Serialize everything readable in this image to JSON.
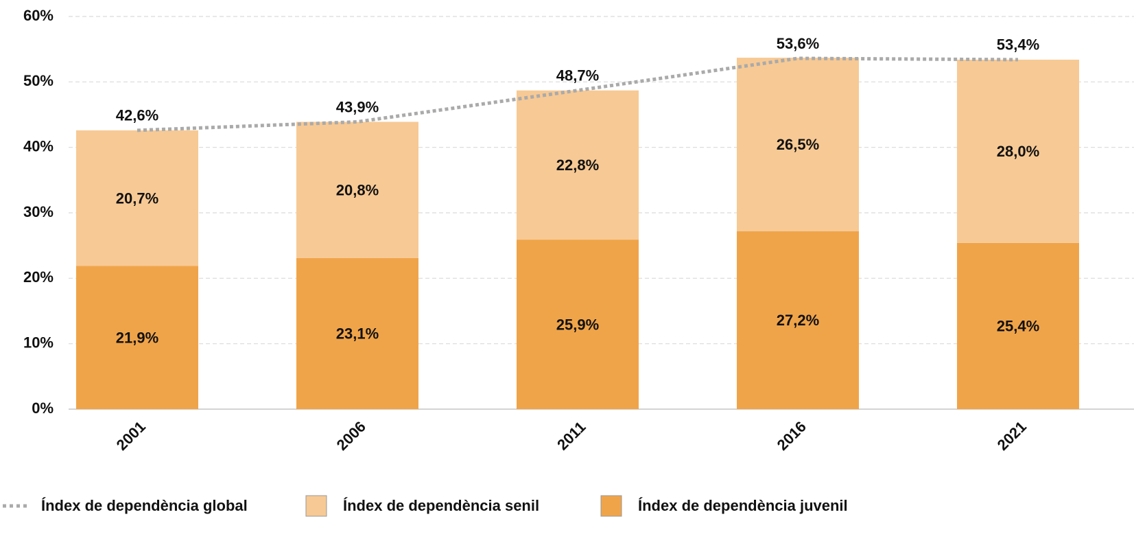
{
  "chart_data": {
    "type": "bar",
    "stacked": true,
    "categories": [
      "2001",
      "2006",
      "2011",
      "2016",
      "2021"
    ],
    "series": [
      {
        "name": "Índex de dependència global",
        "type": "line",
        "color": "#aaaaaa",
        "values": [
          42.6,
          43.9,
          48.7,
          53.6,
          53.4
        ],
        "value_labels": [
          "42,6%",
          "43,9%",
          "48,7%",
          "53,6%",
          "53,4%"
        ]
      },
      {
        "name": "Índex de dependència senil",
        "type": "bar",
        "stack_order": 1,
        "color": "#f7c994",
        "values": [
          20.7,
          20.8,
          22.8,
          26.5,
          28.0
        ],
        "value_labels": [
          "20,7%",
          "20,8%",
          "22,8%",
          "26,5%",
          "28,0%"
        ]
      },
      {
        "name": "Índex de dependència juvenil",
        "type": "bar",
        "stack_order": 0,
        "color": "#f0a449",
        "values": [
          21.9,
          23.1,
          25.9,
          27.2,
          25.4
        ],
        "value_labels": [
          "21,9%",
          "23,1%",
          "25,9%",
          "27,2%",
          "25,4%"
        ]
      }
    ],
    "ylim": [
      0,
      60
    ],
    "yticks": [
      {
        "value": 0,
        "label": "0%"
      },
      {
        "value": 10,
        "label": "10%"
      },
      {
        "value": 20,
        "label": "20%"
      },
      {
        "value": 30,
        "label": "30%"
      },
      {
        "value": 40,
        "label": "40%"
      },
      {
        "value": 50,
        "label": "50%"
      },
      {
        "value": 60,
        "label": "60%"
      }
    ],
    "grid": true,
    "legend": "bottom"
  }
}
